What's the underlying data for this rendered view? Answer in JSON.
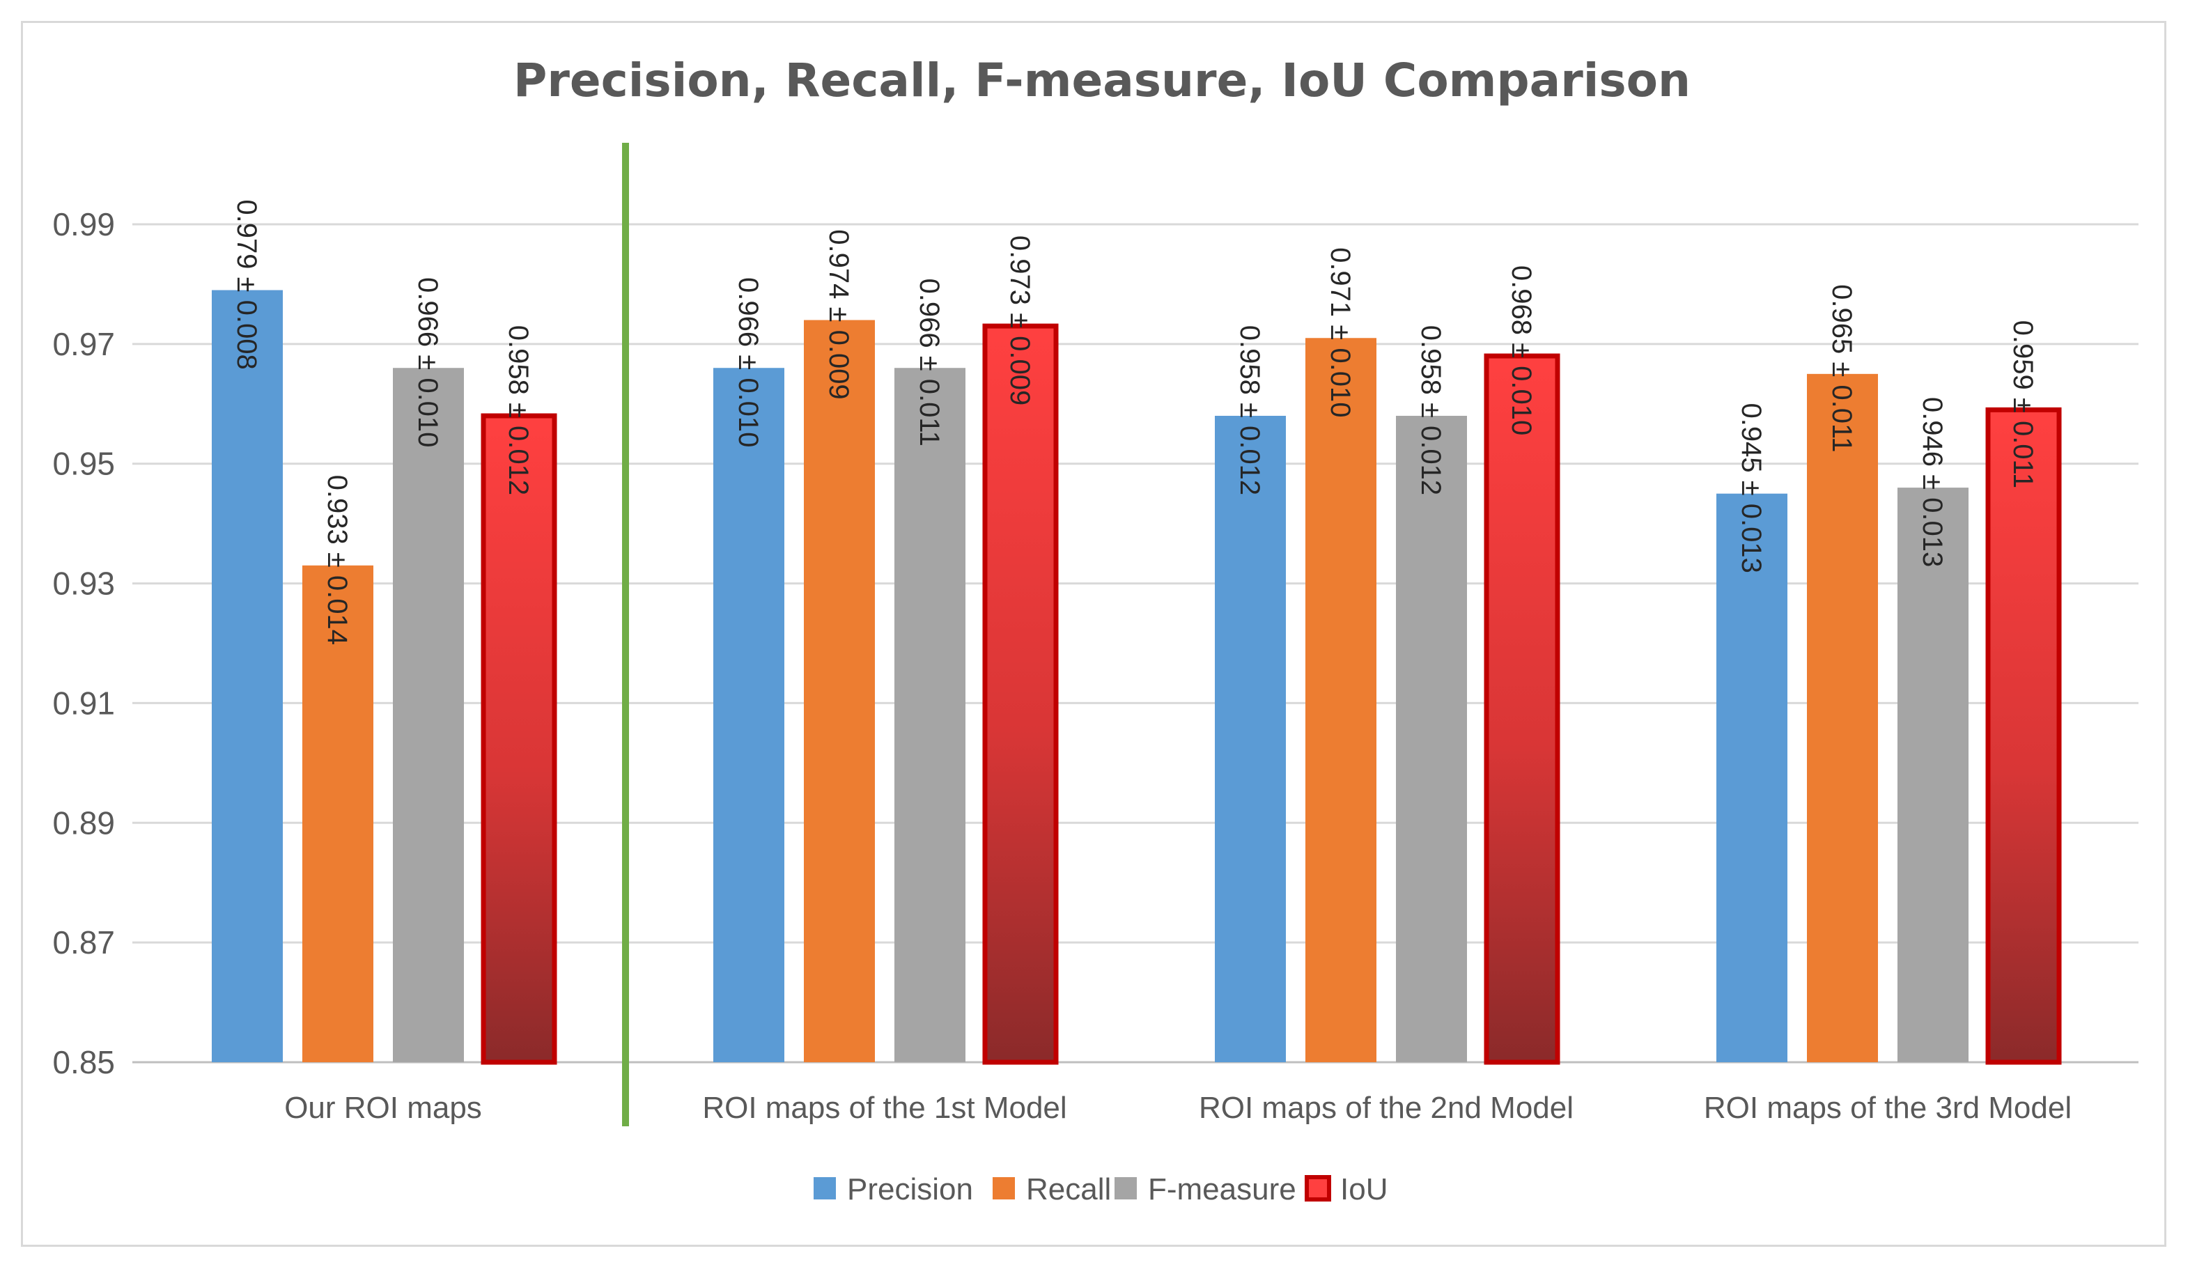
{
  "chart_data": {
    "type": "bar",
    "title": "Precision, Recall, F-measure, IoU Comparison",
    "xlabel": "",
    "ylabel": "",
    "ylim": [
      0.85,
      1.0
    ],
    "yticks": [
      "0.85",
      "0.87",
      "0.89",
      "0.91",
      "0.93",
      "0.95",
      "0.97",
      "0.99"
    ],
    "grid": true,
    "legend_position": "bottom",
    "categories": [
      "Our ROI maps",
      "ROI maps of the 1st Model",
      "ROI maps of the 2nd Model",
      "ROI maps of the 3rd Model"
    ],
    "series": [
      {
        "name": "Precision",
        "color": "#5b9bd5",
        "values": [
          0.979,
          0.966,
          0.958,
          0.945
        ],
        "labels": [
          "0.979 ± 0.008",
          "0.966 ± 0.010",
          "0.958 ± 0.012",
          "0.945 ± 0.013"
        ]
      },
      {
        "name": "Recall",
        "color": "#ed7d31",
        "values": [
          0.933,
          0.974,
          0.971,
          0.965
        ],
        "labels": [
          "0.933 ± 0.014",
          "0.974 ± 0.009",
          "0.971 ± 0.010",
          "0.965 ± 0.011"
        ]
      },
      {
        "name": "F-measure",
        "color": "#a5a5a5",
        "values": [
          0.966,
          0.966,
          0.958,
          0.946
        ],
        "labels": [
          "0.966 ± 0.010",
          "0.966 ± 0.011",
          "0.958 ± 0.012",
          "0.946 ± 0.013"
        ]
      },
      {
        "name": "IoU",
        "color": "#ff4040",
        "color_dark": "#8b2a2a",
        "border_color": "#c00000",
        "values": [
          0.958,
          0.973,
          0.968,
          0.959
        ],
        "labels": [
          "0.958 ± 0.012",
          "0.973 ± 0.009",
          "0.968 ± 0.010",
          "0.959 ± 0.011"
        ]
      }
    ],
    "separator": {
      "after_category": 0,
      "color": "#70ad47"
    },
    "colors": {
      "grid": "#d9d9d9",
      "axis": "#bfbfbf"
    }
  }
}
